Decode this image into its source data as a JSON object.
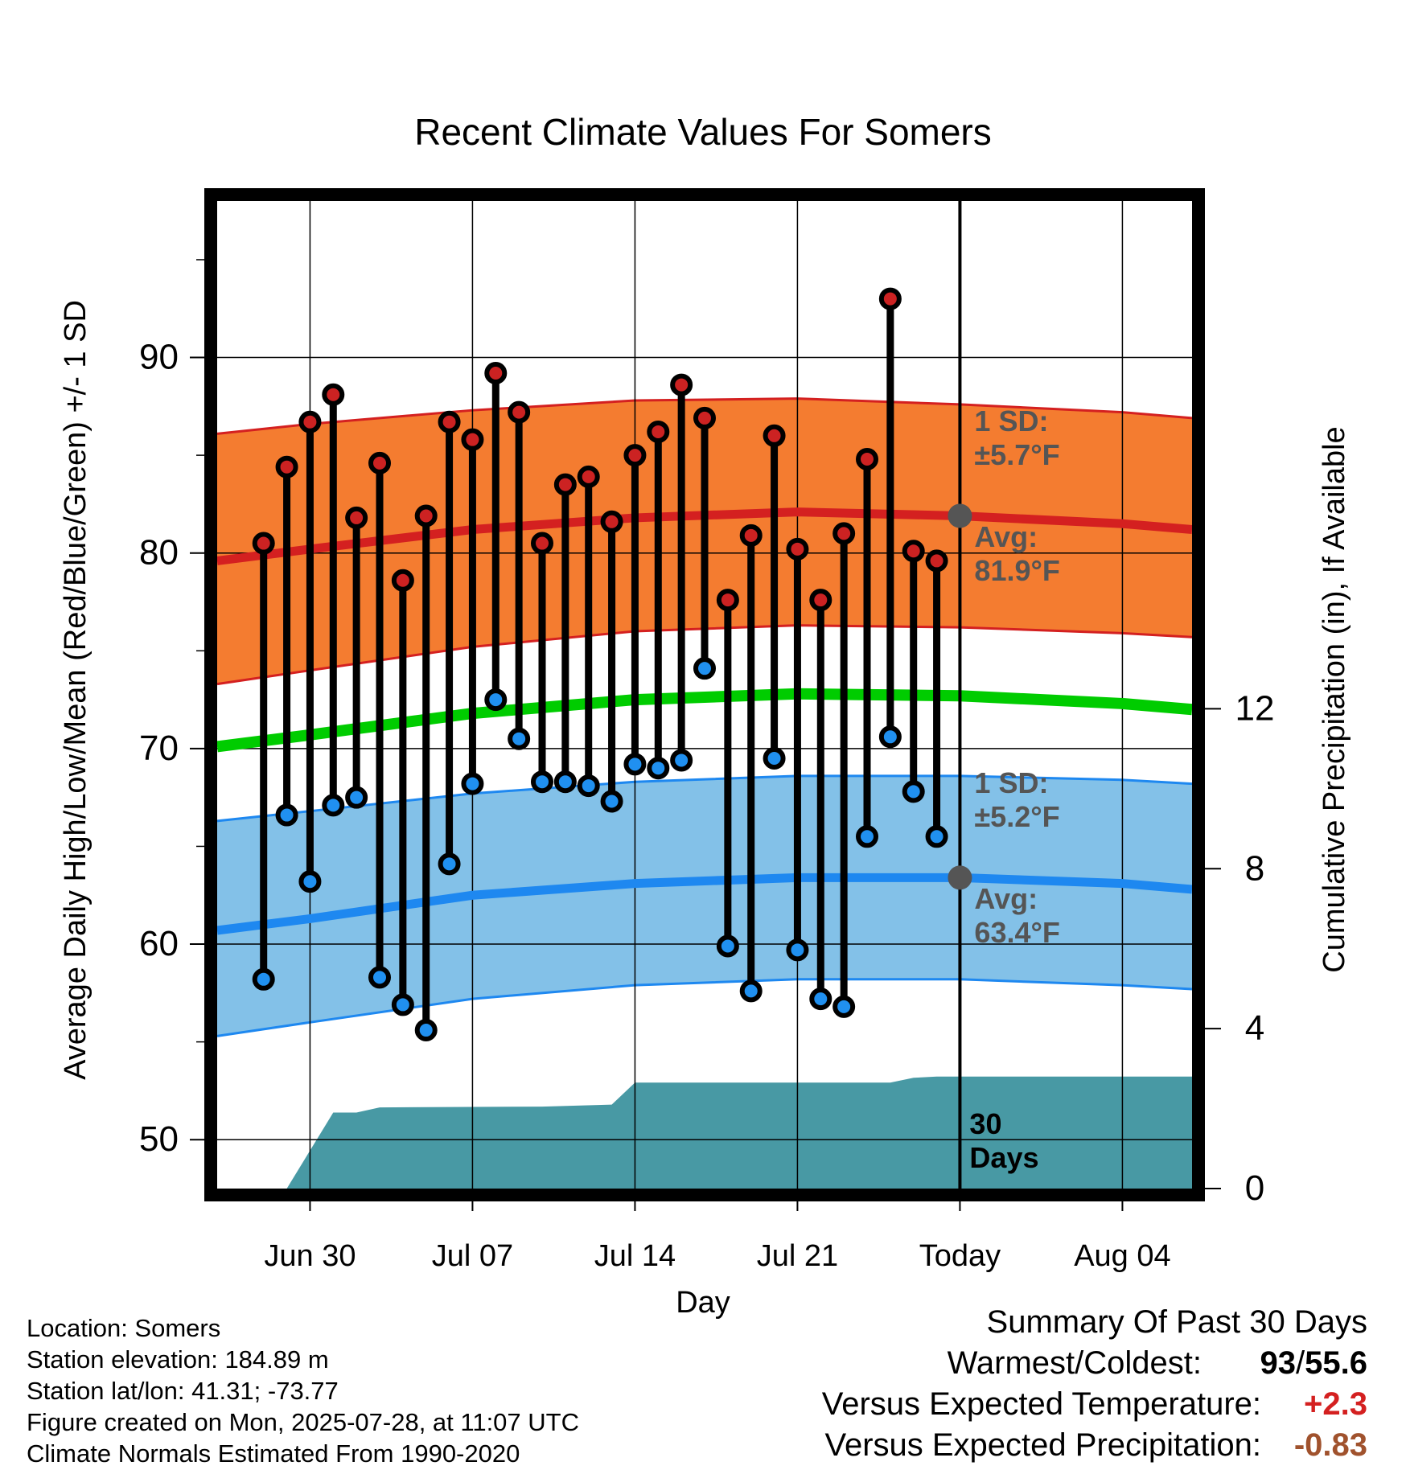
{
  "chart_data": {
    "type": "line",
    "title": "Recent Climate Values For Somers",
    "xlabel": "Day",
    "ylabel": "Average Daily High/Low/Mean (Red/Blue/Green) +/- 1 SD",
    "y2label": "Cumulative Precipitation (in), If Available",
    "xlim": [
      "2025-06-26",
      "2025-08-07"
    ],
    "ylim": [
      47.5,
      98
    ],
    "y2lim": [
      0,
      24.7
    ],
    "x_ticks": [
      "Jun 30",
      "Jul 07",
      "Jul 14",
      "Jul 21",
      "Today",
      "Aug 04"
    ],
    "y_ticks": [
      50,
      60,
      70,
      80,
      90
    ],
    "y2_ticks": [
      0,
      4,
      8,
      12
    ],
    "grid": true,
    "today": "2025-07-28",
    "observed": {
      "dates": [
        "2025-06-28",
        "2025-06-29",
        "2025-06-30",
        "2025-07-01",
        "2025-07-02",
        "2025-07-03",
        "2025-07-04",
        "2025-07-05",
        "2025-07-06",
        "2025-07-07",
        "2025-07-08",
        "2025-07-09",
        "2025-07-10",
        "2025-07-11",
        "2025-07-12",
        "2025-07-13",
        "2025-07-14",
        "2025-07-15",
        "2025-07-16",
        "2025-07-17",
        "2025-07-18",
        "2025-07-19",
        "2025-07-20",
        "2025-07-21",
        "2025-07-22",
        "2025-07-23",
        "2025-07-24",
        "2025-07-25",
        "2025-07-26",
        "2025-07-27"
      ],
      "high": [
        80.5,
        84.4,
        86.7,
        88.1,
        81.8,
        84.6,
        78.6,
        81.9,
        86.7,
        85.8,
        89.2,
        87.2,
        80.5,
        83.5,
        83.9,
        81.6,
        85.0,
        86.2,
        88.6,
        86.9,
        77.6,
        80.9,
        86.0,
        80.2,
        77.6,
        81.0,
        84.8,
        93.0,
        80.1,
        79.6
      ],
      "low": [
        58.2,
        66.6,
        63.2,
        67.1,
        67.5,
        58.3,
        56.9,
        55.6,
        64.1,
        68.2,
        72.5,
        70.5,
        68.3,
        68.3,
        68.1,
        67.3,
        69.2,
        69.0,
        69.4,
        74.1,
        59.9,
        57.6,
        69.5,
        59.7,
        57.2,
        56.8,
        65.5,
        70.6,
        67.8,
        65.5
      ]
    },
    "normals": {
      "dates": [
        "2025-06-26",
        "2025-06-30",
        "2025-07-07",
        "2025-07-14",
        "2025-07-21",
        "2025-07-28",
        "2025-08-04",
        "2025-08-07"
      ],
      "high_avg": [
        79.6,
        80.2,
        81.2,
        81.8,
        82.1,
        81.9,
        81.5,
        81.2
      ],
      "high_upper": [
        86.1,
        86.6,
        87.3,
        87.8,
        87.9,
        87.6,
        87.2,
        86.9
      ],
      "high_lower": [
        73.3,
        74.0,
        75.2,
        76.0,
        76.3,
        76.2,
        75.9,
        75.7
      ],
      "mean": [
        70.1,
        70.7,
        71.8,
        72.5,
        72.8,
        72.7,
        72.3,
        72.0
      ],
      "low_avg": [
        60.7,
        61.3,
        62.5,
        63.1,
        63.4,
        63.4,
        63.1,
        62.8
      ],
      "low_upper": [
        66.3,
        66.8,
        67.7,
        68.3,
        68.6,
        68.6,
        68.4,
        68.2
      ],
      "low_lower": [
        55.3,
        56.0,
        57.2,
        57.9,
        58.2,
        58.2,
        57.9,
        57.7
      ]
    },
    "precip_cumulative": {
      "dates": [
        "2025-06-29",
        "2025-07-01",
        "2025-07-02",
        "2025-07-03",
        "2025-07-10",
        "2025-07-13",
        "2025-07-14",
        "2025-07-25",
        "2025-07-26",
        "2025-07-27",
        "2025-08-07"
      ],
      "values": [
        0,
        1.9,
        1.9,
        2.03,
        2.05,
        2.1,
        2.65,
        2.65,
        2.77,
        2.8,
        2.8
      ]
    },
    "annotations": {
      "high_sd": [
        "1 SD:",
        "±5.7°F"
      ],
      "high_avg": [
        "Avg:",
        "81.9°F"
      ],
      "low_sd": [
        "1 SD:",
        "±5.2°F"
      ],
      "low_avg": [
        "Avg:",
        "63.4°F"
      ],
      "window": [
        "30",
        "Days"
      ]
    },
    "colors": {
      "high_band": "#f47c30",
      "high_line": "#d42020",
      "mean_line": "#00cc00",
      "low_band": "#83c1e8",
      "low_line": "#1e88f0",
      "precip": "#4899a4",
      "high_point": "#cc2222",
      "low_point": "#2090f0",
      "avg_marker": "#555555"
    }
  },
  "info": {
    "location": "Location: Somers",
    "elevation": "Station elevation: 184.89 m",
    "latlon": "Station lat/lon: 41.31; -73.77",
    "created": "Figure created on Mon, 2025-07-28, at 11:07 UTC",
    "normals": "Climate Normals Estimated From 1990-2020"
  },
  "summary": {
    "title": "Summary Of Past 30 Days",
    "warm_cold_label": "Warmest/Coldest:",
    "warmest": "93",
    "coldest": "55.6",
    "temp_label": "Versus Expected Temperature:",
    "temp_value": "+2.3",
    "precip_label": "Versus Expected Precipitation:",
    "precip_value": "-0.83",
    "temp_color": "#d42020",
    "precip_color": "#a0522d"
  }
}
